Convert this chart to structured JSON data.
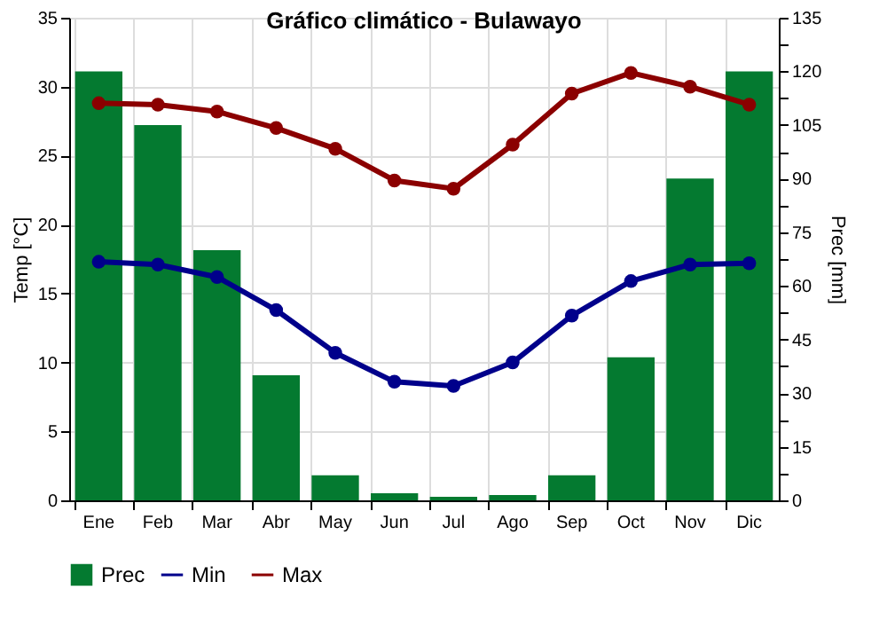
{
  "chart_data": {
    "type": "bar",
    "title": "Gráfico climático - Bulawayo",
    "categories": [
      "Ene",
      "Feb",
      "Mar",
      "Abr",
      "May",
      "Jun",
      "Jul",
      "Ago",
      "Sep",
      "Oct",
      "Nov",
      "Dic"
    ],
    "series": [
      {
        "name": "Prec",
        "type": "bar",
        "axis": "y2",
        "color": "#047a30",
        "values": [
          120,
          105,
          70,
          35,
          7,
          2,
          1,
          1.5,
          7,
          40,
          90,
          120
        ]
      },
      {
        "name": "Min",
        "type": "line",
        "color": "#00008b",
        "values": [
          17.3,
          17.1,
          16.2,
          13.8,
          10.7,
          8.6,
          8.3,
          10,
          13.4,
          15.9,
          17.1,
          17.2
        ]
      },
      {
        "name": "Max",
        "type": "line",
        "color": "#8b0000",
        "values": [
          28.8,
          28.7,
          28.2,
          27,
          25.5,
          23.2,
          22.6,
          25.8,
          29.5,
          31,
          30,
          28.7
        ]
      }
    ],
    "ylabel": "Temp [°C]",
    "y2label": "Prec [mm]",
    "ylim": [
      0,
      35
    ],
    "yticks": [
      0,
      5,
      10,
      15,
      20,
      25,
      30,
      35
    ],
    "y2lim": [
      0,
      135
    ],
    "y2ticks": [
      0,
      {
        "value": 7.5,
        "label": null
      },
      15,
      {
        "value": 22.5,
        "label": null
      },
      30,
      {
        "value": 37.5,
        "label": null
      },
      45,
      {
        "value": 52.5,
        "label": null
      },
      60,
      {
        "value": 67.5,
        "label": null
      },
      75,
      {
        "value": 82.5,
        "label": null
      },
      90,
      {
        "value": 97.5,
        "label": null
      },
      105,
      {
        "value": 112.5,
        "label": null
      },
      120,
      {
        "value": 127.5,
        "label": null
      },
      135
    ],
    "grid": true,
    "legend": "bottom",
    "marker": "circle",
    "line_style": "solid"
  }
}
